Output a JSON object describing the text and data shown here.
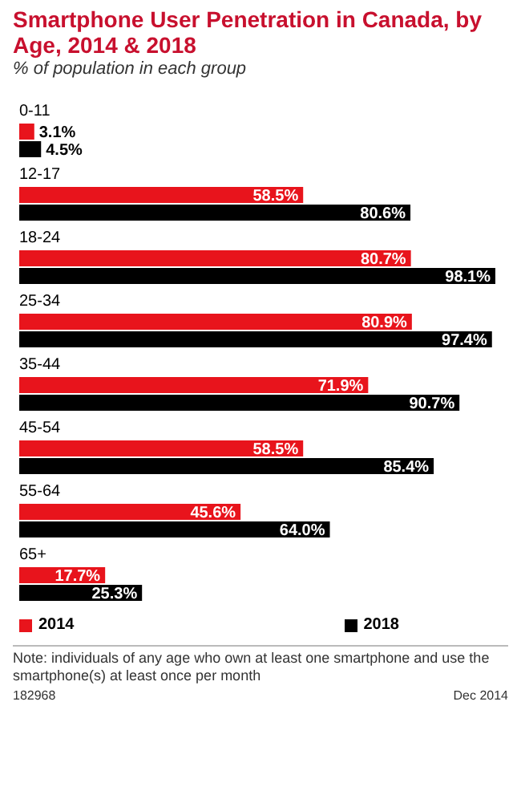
{
  "chart_data": {
    "type": "bar",
    "orientation": "horizontal",
    "title": "Smartphone User Penetration in Canada, by Age, 2014 & 2018",
    "subtitle": "% of population in each group",
    "categories": [
      "0-11",
      "12-17",
      "18-24",
      "25-34",
      "35-44",
      "45-54",
      "55-64",
      "65+"
    ],
    "series": [
      {
        "name": "2014",
        "color": "#e8141c",
        "values": [
          3.1,
          58.5,
          80.7,
          80.9,
          71.9,
          58.5,
          45.6,
          17.7
        ],
        "value_labels": [
          "3.1%",
          "58.5%",
          "80.7%",
          "80.9%",
          "71.9%",
          "58.5%",
          "45.6%",
          "17.7%"
        ]
      },
      {
        "name": "2018",
        "color": "#000000",
        "values": [
          4.5,
          80.6,
          98.1,
          97.4,
          90.7,
          85.4,
          64.0,
          25.3
        ],
        "value_labels": [
          "4.5%",
          "80.6%",
          "98.1%",
          "97.4%",
          "90.7%",
          "85.4%",
          "64.0%",
          "25.3%"
        ]
      }
    ],
    "tick_labels": "y",
    "grid": false,
    "legend": "bottom",
    "annotations": [
      "Note: individuals of any age who own at least one smartphone and use the smartphone(s) at least once per month",
      "182968",
      "Dec 2014"
    ]
  }
}
